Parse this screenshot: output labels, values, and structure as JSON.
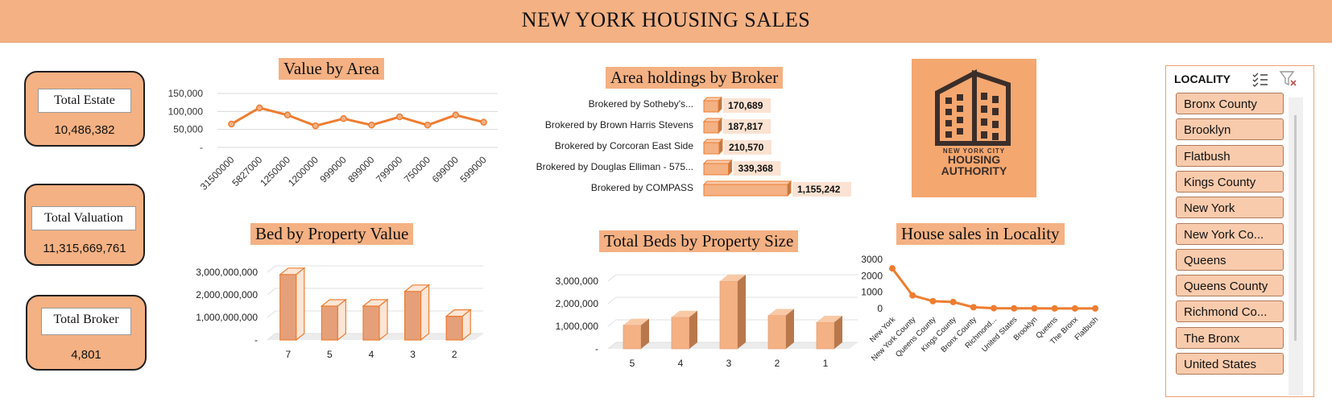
{
  "header": {
    "title": "NEW YORK HOUSING SALES"
  },
  "kpis": {
    "estate": {
      "label": "Total Estate",
      "value": "10,486,382"
    },
    "valuation": {
      "label": "Total Valuation",
      "value": "11,315,669,761"
    },
    "broker": {
      "label": "Total Broker",
      "value": "4,801"
    }
  },
  "logo": {
    "line1": "NEW YORK CITY",
    "line2": "HOUSING",
    "line3": "AUTHORITY",
    "color": "#3b2e2a",
    "bg": "#f4a76f"
  },
  "colors": {
    "accent": "#ed7d31",
    "light": "#f4b183",
    "pale": "#f8cbad",
    "dark_side": "#b9784c"
  },
  "slicer": {
    "title": "LOCALITY",
    "items": [
      "Bronx County",
      "Brooklyn",
      "Flatbush",
      "Kings County",
      "New York",
      "New York Co...",
      "Queens",
      "Queens County",
      "Richmond Co...",
      "The Bronx",
      "United States"
    ]
  },
  "chart_data": [
    {
      "id": "value_by_area",
      "type": "line",
      "title": "Value by Area",
      "categories": [
        "31500000",
        "5827000",
        "1250000",
        "1200000",
        "999000",
        "899000",
        "799000",
        "750000",
        "699000",
        "599000"
      ],
      "values": [
        65000,
        110000,
        90000,
        60000,
        80000,
        62000,
        85000,
        62000,
        90000,
        70000
      ],
      "ylim": [
        0,
        150000
      ],
      "yticks": [
        "150,000",
        "100,000",
        "50,000",
        "-"
      ]
    },
    {
      "id": "area_holdings_by_broker",
      "type": "bar",
      "orientation": "horizontal",
      "title": "Area holdings by Broker",
      "categories": [
        "Brokered by Sotheby's...",
        "Brokered by Brown Harris Stevens",
        "Brokered by Corcoran East Side",
        "Brokered by Douglas Elliman - 575...",
        "Brokered by COMPASS"
      ],
      "values": [
        170689,
        187817,
        210570,
        339368,
        1155242
      ],
      "labels": [
        "170,689",
        "187,817",
        "210,570",
        "339,368",
        "1,155,242"
      ]
    },
    {
      "id": "bed_by_property_value",
      "type": "bar",
      "title": "Bed by Property Value",
      "categories": [
        "7",
        "5",
        "4",
        "3",
        "2"
      ],
      "values": [
        2900000000,
        1500000000,
        1500000000,
        2150000000,
        1050000000
      ],
      "ylim": [
        0,
        3000000000
      ],
      "yticks": [
        "3,000,000,000",
        "2,000,000,000",
        "1,000,000,000",
        "-"
      ]
    },
    {
      "id": "total_beds_by_property_size",
      "type": "bar",
      "title": "Total Beds by Property Size",
      "categories": [
        "5",
        "4",
        "3",
        "2",
        "1"
      ],
      "values": [
        1050000,
        1400000,
        3000000,
        1480000,
        1180000
      ],
      "ylim": [
        0,
        3000000
      ],
      "yticks": [
        "3,000,000",
        "2,000,000",
        "1,000,000",
        "-"
      ]
    },
    {
      "id": "house_sales_in_locality",
      "type": "line",
      "title": "House sales in Locality",
      "categories": [
        "New York",
        "New York County",
        "Queens County",
        "Kings County",
        "Bronx County",
        "Richmond...",
        "United States",
        "Brooklyn",
        "Queens",
        "The Bronx",
        "Flatbush"
      ],
      "values": [
        2450,
        800,
        450,
        400,
        80,
        20,
        10,
        10,
        5,
        5,
        5
      ],
      "ylim": [
        0,
        3000
      ],
      "yticks": [
        "3000",
        "2000",
        "1000",
        "0"
      ]
    }
  ]
}
